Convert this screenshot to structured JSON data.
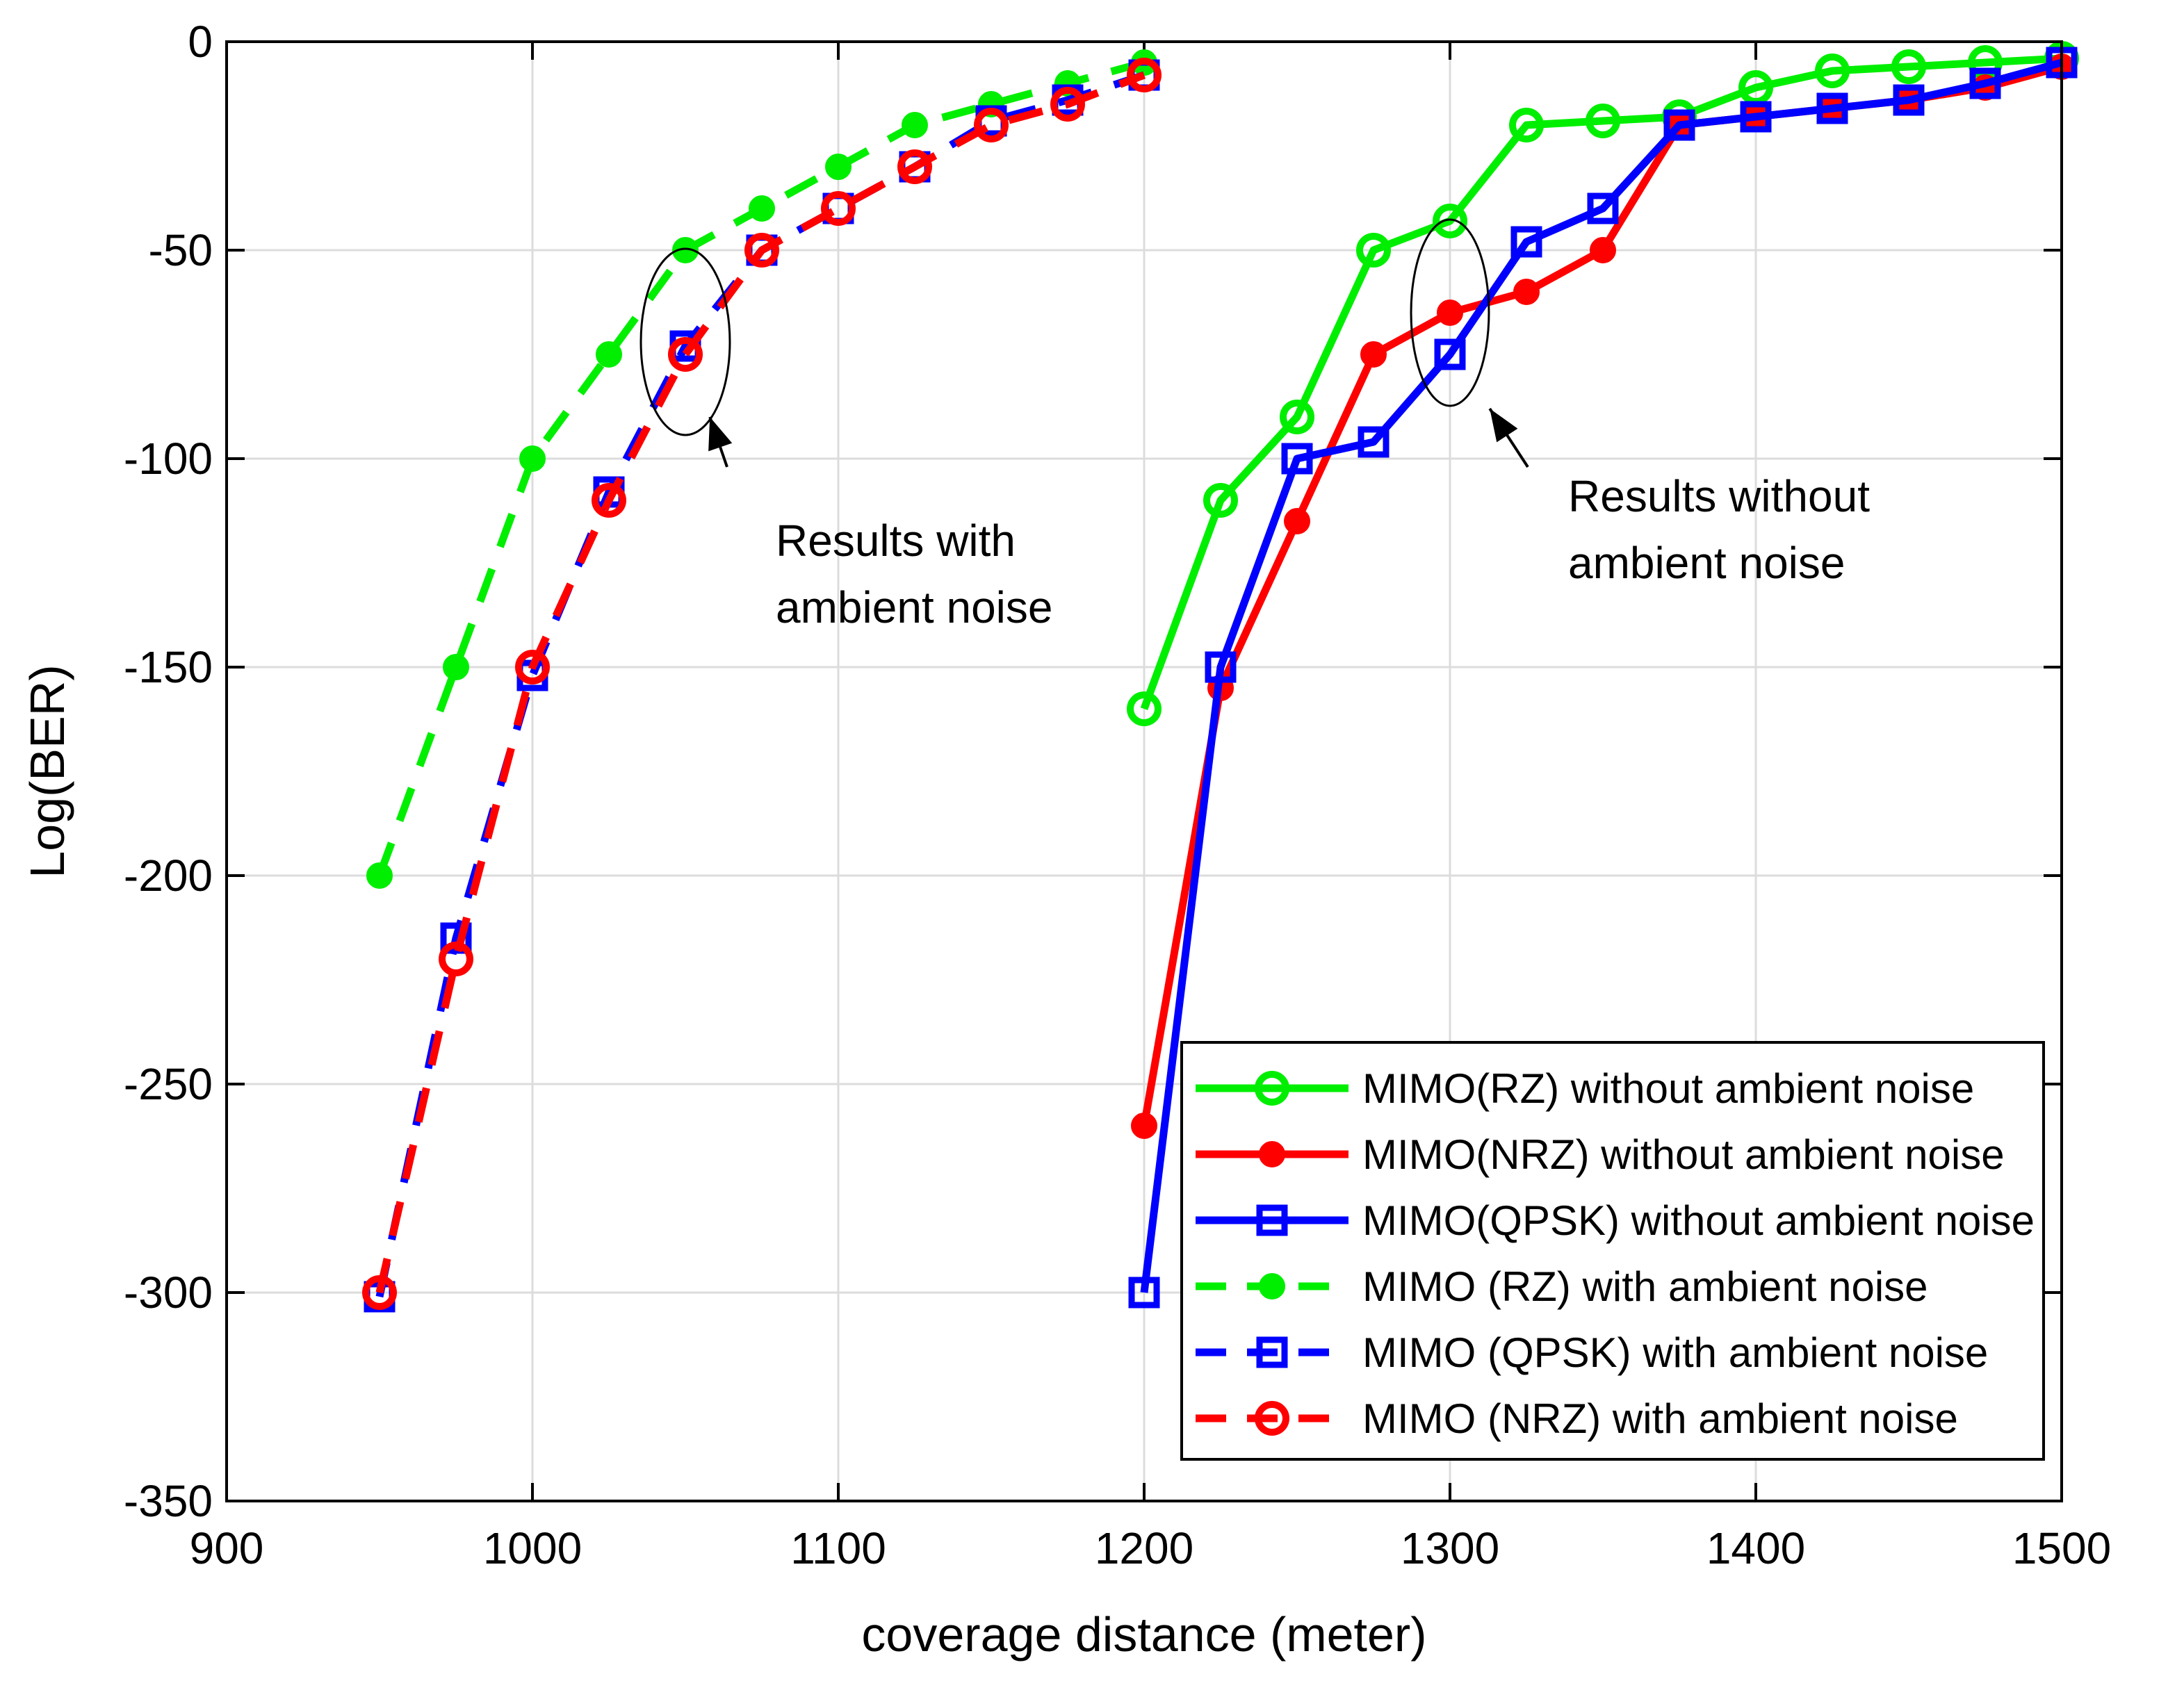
{
  "chart_data": {
    "type": "line",
    "title": "",
    "xlabel": "coverage distance (meter)",
    "ylabel": "Log(BER)",
    "xlim": [
      900,
      1500
    ],
    "ylim": [
      -350,
      0
    ],
    "xticks": [
      900,
      1000,
      1100,
      1200,
      1300,
      1400,
      1500
    ],
    "yticks": [
      0,
      -50,
      -100,
      -150,
      -200,
      -250,
      -300,
      -350
    ],
    "grid": true,
    "legend_position": "bottom-right",
    "colors": {
      "green": "#00ee00",
      "red": "#ff0000",
      "blue": "#0000ff"
    },
    "series": [
      {
        "name": "MIMO(RZ) without ambient noise",
        "color": "green",
        "dash": "solid",
        "marker": "circle-open",
        "x": [
          1200,
          1225,
          1250,
          1275,
          1300,
          1325,
          1350,
          1375,
          1400,
          1425,
          1450,
          1475,
          1500
        ],
        "y": [
          -160,
          -110,
          -90,
          -50,
          -43,
          -20,
          -19,
          -18,
          -11,
          -7,
          -6,
          -5,
          -4
        ]
      },
      {
        "name": "MIMO(NRZ) without ambient noise",
        "color": "red",
        "dash": "solid",
        "marker": "dot",
        "x": [
          1200,
          1225,
          1250,
          1275,
          1300,
          1325,
          1350,
          1375,
          1400,
          1425,
          1450,
          1475,
          1500
        ],
        "y": [
          -260,
          -155,
          -115,
          -75,
          -65,
          -60,
          -50,
          -20,
          -18,
          -16,
          -14,
          -11,
          -6
        ]
      },
      {
        "name": "MIMO(QPSK) without ambient noise",
        "color": "blue",
        "dash": "solid",
        "marker": "square-open",
        "x": [
          1200,
          1225,
          1250,
          1275,
          1300,
          1325,
          1350,
          1375,
          1400,
          1425,
          1450,
          1475,
          1500
        ],
        "y": [
          -300,
          -150,
          -100,
          -96,
          -75,
          -48,
          -40,
          -20,
          -18,
          -16,
          -14,
          -10,
          -5
        ]
      },
      {
        "name": "MIMO (RZ) with ambient noise",
        "color": "green",
        "dash": "dashed",
        "marker": "dot",
        "x": [
          950,
          975,
          1000,
          1025,
          1050,
          1075,
          1100,
          1125,
          1150,
          1175,
          1200
        ],
        "y": [
          -200,
          -150,
          -100,
          -75,
          -50,
          -40,
          -30,
          -20,
          -15,
          -10,
          -5
        ]
      },
      {
        "name": "MIMO (QPSK) with ambient noise",
        "color": "blue",
        "dash": "dashed",
        "marker": "square-open",
        "x": [
          950,
          975,
          1000,
          1025,
          1050,
          1075,
          1100,
          1125,
          1150,
          1175,
          1200
        ],
        "y": [
          -301,
          -215,
          -152,
          -108,
          -73,
          -50,
          -40,
          -30,
          -19,
          -14,
          -8
        ]
      },
      {
        "name": "MIMO (NRZ) with ambient noise",
        "color": "red",
        "dash": "dashed",
        "marker": "circle-open",
        "x": [
          950,
          975,
          1000,
          1025,
          1050,
          1075,
          1100,
          1125,
          1150,
          1175,
          1200
        ],
        "y": [
          -300,
          -220,
          -150,
          -110,
          -75,
          -50,
          -40,
          -30,
          -20,
          -15,
          -8
        ]
      }
    ],
    "annotations": [
      {
        "lines": [
          "Results with",
          "ambient noise"
        ],
        "ellipse_center": [
          1050,
          -72
        ],
        "arrow_tip": [
          1058,
          -90
        ]
      },
      {
        "lines": [
          "Results without",
          "ambient noise"
        ],
        "ellipse_center": [
          1300,
          -65
        ],
        "arrow_tip": [
          1313,
          -88
        ]
      }
    ]
  }
}
